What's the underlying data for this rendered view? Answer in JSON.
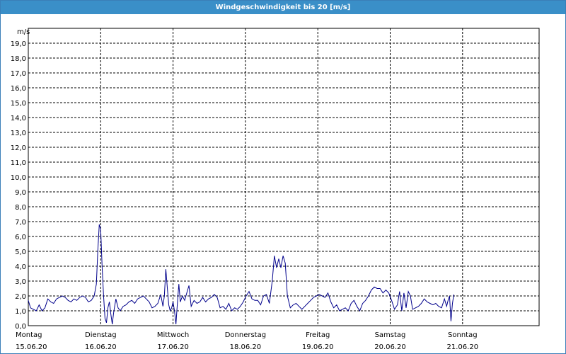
{
  "window": {
    "title": "Windgeschwindigkeit bis 20 [m/s]"
  },
  "colors": {
    "titlebar": "#3a8fc8",
    "line": "#00008b",
    "grid": "#000000",
    "background": "#ffffff"
  },
  "chart_data": {
    "type": "line",
    "title": "Windgeschwindigkeit bis 20 [m/s]",
    "ylabel": "m/s",
    "ylim": [
      0,
      20
    ],
    "y_ticks": [
      "0,0",
      "1,0",
      "2,0",
      "3,0",
      "4,0",
      "5,0",
      "6,0",
      "7,0",
      "8,0",
      "9,0",
      "10,0",
      "11,0",
      "12,0",
      "13,0",
      "14,0",
      "15,0",
      "16,0",
      "17,0",
      "18,0",
      "19,0"
    ],
    "x_labels": [
      {
        "day": "Montag",
        "date": "15.06.20"
      },
      {
        "day": "Dienstag",
        "date": "16.06.20"
      },
      {
        "day": "Mittwoch",
        "date": "17.06.20"
      },
      {
        "day": "Donnerstag",
        "date": "18.06.20"
      },
      {
        "day": "Freitag",
        "date": "19.06.20"
      },
      {
        "day": "Samstag",
        "date": "20.06.20"
      },
      {
        "day": "Sonntag",
        "date": "21.06.20"
      }
    ],
    "xlim_days": [
      0,
      7.0
    ],
    "grid": true,
    "series": [
      {
        "color": "#00008b",
        "points": [
          [
            0.0,
            1.7
          ],
          [
            0.03,
            1.2
          ],
          [
            0.07,
            1.1
          ],
          [
            0.11,
            1.0
          ],
          [
            0.15,
            1.4
          ],
          [
            0.19,
            1.0
          ],
          [
            0.23,
            1.2
          ],
          [
            0.27,
            1.8
          ],
          [
            0.31,
            1.6
          ],
          [
            0.35,
            1.5
          ],
          [
            0.39,
            1.8
          ],
          [
            0.43,
            1.9
          ],
          [
            0.47,
            2.0
          ],
          [
            0.51,
            1.9
          ],
          [
            0.55,
            1.7
          ],
          [
            0.59,
            1.6
          ],
          [
            0.63,
            1.8
          ],
          [
            0.67,
            1.7
          ],
          [
            0.71,
            1.9
          ],
          [
            0.75,
            2.0
          ],
          [
            0.79,
            1.9
          ],
          [
            0.83,
            1.6
          ],
          [
            0.87,
            1.7
          ],
          [
            0.91,
            2.0
          ],
          [
            0.94,
            2.8
          ],
          [
            0.96,
            5.0
          ],
          [
            0.98,
            6.8
          ],
          [
            1.0,
            6.5
          ],
          [
            1.02,
            4.0
          ],
          [
            1.04,
            2.0
          ],
          [
            1.06,
            0.5
          ],
          [
            1.08,
            0.2
          ],
          [
            1.1,
            1.2
          ],
          [
            1.12,
            1.6
          ],
          [
            1.14,
            0.8
          ],
          [
            1.16,
            0.1
          ],
          [
            1.18,
            0.9
          ],
          [
            1.21,
            1.8
          ],
          [
            1.24,
            1.2
          ],
          [
            1.27,
            1.0
          ],
          [
            1.31,
            1.3
          ],
          [
            1.35,
            1.4
          ],
          [
            1.39,
            1.6
          ],
          [
            1.43,
            1.7
          ],
          [
            1.47,
            1.5
          ],
          [
            1.51,
            1.8
          ],
          [
            1.55,
            1.9
          ],
          [
            1.59,
            2.0
          ],
          [
            1.63,
            1.8
          ],
          [
            1.67,
            1.6
          ],
          [
            1.71,
            1.2
          ],
          [
            1.75,
            1.3
          ],
          [
            1.79,
            1.5
          ],
          [
            1.83,
            2.1
          ],
          [
            1.86,
            1.3
          ],
          [
            1.88,
            2.0
          ],
          [
            1.9,
            3.8
          ],
          [
            1.92,
            2.6
          ],
          [
            1.94,
            1.4
          ],
          [
            1.96,
            1.0
          ],
          [
            1.98,
            1.2
          ],
          [
            2.0,
            1.6
          ],
          [
            2.02,
            1.0
          ],
          [
            2.04,
            0.1
          ],
          [
            2.06,
            1.5
          ],
          [
            2.08,
            2.8
          ],
          [
            2.1,
            1.6
          ],
          [
            2.13,
            2.0
          ],
          [
            2.16,
            1.7
          ],
          [
            2.19,
            2.2
          ],
          [
            2.22,
            2.7
          ],
          [
            2.25,
            1.3
          ],
          [
            2.29,
            1.7
          ],
          [
            2.33,
            1.5
          ],
          [
            2.37,
            1.6
          ],
          [
            2.41,
            1.9
          ],
          [
            2.45,
            1.6
          ],
          [
            2.49,
            1.8
          ],
          [
            2.53,
            1.9
          ],
          [
            2.57,
            2.1
          ],
          [
            2.61,
            1.9
          ],
          [
            2.65,
            1.2
          ],
          [
            2.69,
            1.3
          ],
          [
            2.73,
            1.1
          ],
          [
            2.77,
            1.5
          ],
          [
            2.81,
            1.0
          ],
          [
            2.85,
            1.2
          ],
          [
            2.89,
            1.1
          ],
          [
            2.93,
            1.3
          ],
          [
            2.97,
            1.6
          ],
          [
            3.01,
            2.0
          ],
          [
            3.05,
            2.3
          ],
          [
            3.09,
            1.8
          ],
          [
            3.13,
            1.7
          ],
          [
            3.17,
            1.7
          ],
          [
            3.21,
            1.4
          ],
          [
            3.25,
            2.0
          ],
          [
            3.29,
            2.1
          ],
          [
            3.33,
            1.5
          ],
          [
            3.37,
            3.0
          ],
          [
            3.4,
            4.7
          ],
          [
            3.43,
            3.9
          ],
          [
            3.46,
            4.5
          ],
          [
            3.49,
            3.9
          ],
          [
            3.52,
            4.7
          ],
          [
            3.55,
            4.2
          ],
          [
            3.58,
            2.0
          ],
          [
            3.62,
            1.2
          ],
          [
            3.66,
            1.4
          ],
          [
            3.7,
            1.5
          ],
          [
            3.74,
            1.3
          ],
          [
            3.78,
            1.1
          ],
          [
            3.82,
            1.3
          ],
          [
            3.86,
            1.5
          ],
          [
            3.9,
            1.7
          ],
          [
            3.94,
            1.9
          ],
          [
            3.98,
            2.0
          ],
          [
            4.02,
            2.1
          ],
          [
            4.06,
            2.0
          ],
          [
            4.1,
            1.9
          ],
          [
            4.14,
            2.2
          ],
          [
            4.18,
            1.6
          ],
          [
            4.22,
            1.2
          ],
          [
            4.26,
            1.4
          ],
          [
            4.3,
            1.0
          ],
          [
            4.34,
            1.1
          ],
          [
            4.38,
            1.2
          ],
          [
            4.42,
            1.0
          ],
          [
            4.46,
            1.5
          ],
          [
            4.5,
            1.7
          ],
          [
            4.54,
            1.3
          ],
          [
            4.58,
            1.0
          ],
          [
            4.62,
            1.5
          ],
          [
            4.66,
            1.7
          ],
          [
            4.7,
            2.0
          ],
          [
            4.74,
            2.4
          ],
          [
            4.78,
            2.6
          ],
          [
            4.82,
            2.5
          ],
          [
            4.86,
            2.5
          ],
          [
            4.9,
            2.2
          ],
          [
            4.94,
            2.4
          ],
          [
            4.98,
            2.2
          ],
          [
            5.02,
            1.7
          ],
          [
            5.06,
            1.1
          ],
          [
            5.1,
            1.4
          ],
          [
            5.13,
            2.3
          ],
          [
            5.16,
            1.0
          ],
          [
            5.19,
            2.2
          ],
          [
            5.22,
            1.2
          ],
          [
            5.25,
            2.3
          ],
          [
            5.28,
            2.0
          ],
          [
            5.31,
            1.1
          ],
          [
            5.35,
            1.2
          ],
          [
            5.39,
            1.3
          ],
          [
            5.43,
            1.5
          ],
          [
            5.47,
            1.8
          ],
          [
            5.51,
            1.6
          ],
          [
            5.55,
            1.5
          ],
          [
            5.59,
            1.4
          ],
          [
            5.63,
            1.5
          ],
          [
            5.67,
            1.3
          ],
          [
            5.71,
            1.2
          ],
          [
            5.75,
            1.8
          ],
          [
            5.78,
            1.3
          ],
          [
            5.8,
            1.7
          ],
          [
            5.82,
            2.0
          ],
          [
            5.84,
            0.3
          ],
          [
            5.86,
            1.5
          ],
          [
            5.88,
            2.1
          ]
        ]
      }
    ]
  }
}
